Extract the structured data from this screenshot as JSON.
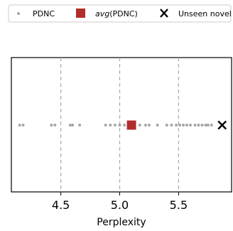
{
  "chart_data": {
    "type": "scatter",
    "xlabel": "Perplexity",
    "ylabel": "",
    "xlim": [
      4.08,
      5.95
    ],
    "xticks": [
      {
        "value": 4.5,
        "label": "4.5"
      },
      {
        "value": 5.0,
        "label": "5.0"
      },
      {
        "value": 5.5,
        "label": "5.5"
      }
    ],
    "grid": "vertical dashed at x ticks",
    "legend_position": "top, outside plot",
    "series": [
      {
        "name": "PDNC",
        "marker": "small-dot",
        "color": "#a6a6a6",
        "x": [
          4.15,
          4.18,
          4.42,
          4.45,
          4.58,
          4.6,
          4.66,
          4.88,
          4.92,
          4.96,
          5.0,
          5.04,
          5.08,
          5.12,
          5.17,
          5.22,
          5.25,
          5.32,
          5.4,
          5.44,
          5.48,
          5.51,
          5.54,
          5.57,
          5.6,
          5.64,
          5.67,
          5.7,
          5.73,
          5.75,
          5.78
        ]
      },
      {
        "name": "avg(PDNC)",
        "name_italic": "avg",
        "name_rest": "(PDNC)",
        "marker": "square",
        "color": "#b22c2c",
        "x": [
          5.1
        ]
      },
      {
        "name": "Unseen novel",
        "marker": "x",
        "color": "#000000",
        "x": [
          5.87
        ]
      }
    ]
  }
}
